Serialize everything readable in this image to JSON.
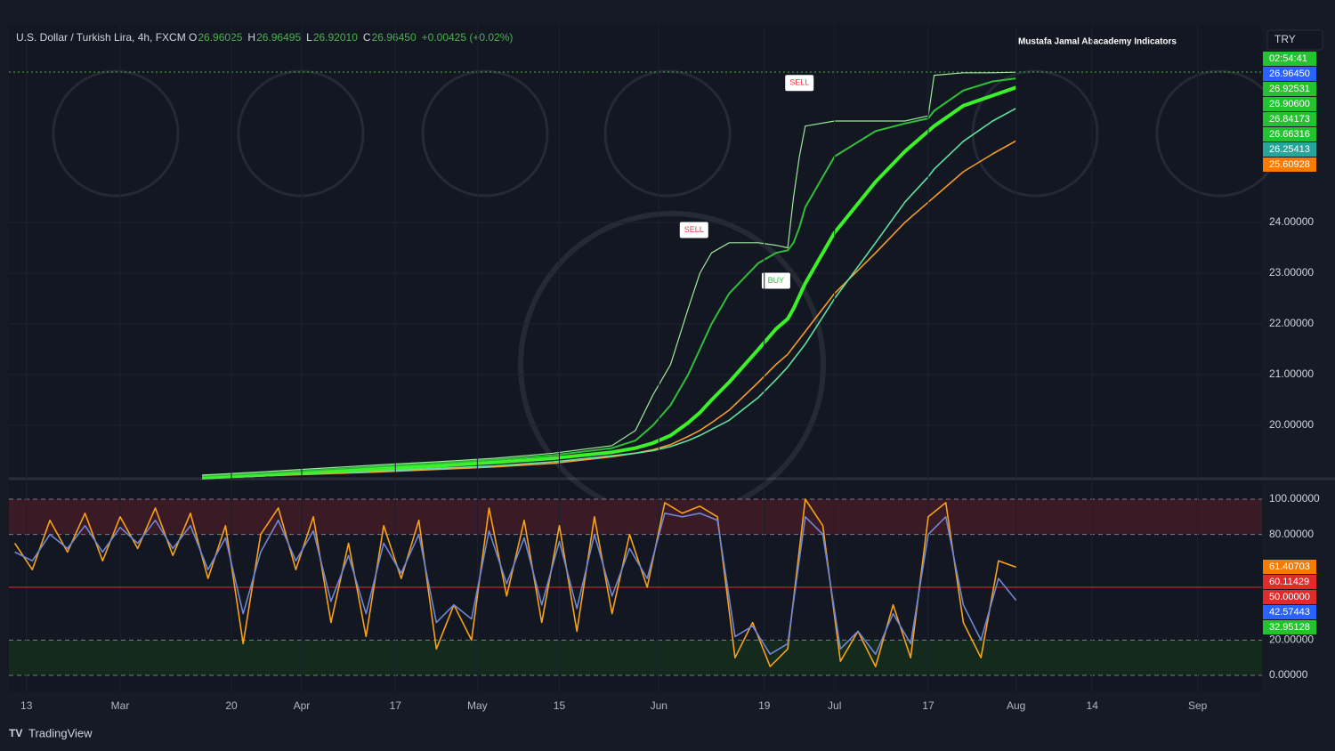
{
  "header": {
    "symbol": "U.S. Dollar / Turkish Lira, 4h, FXCM",
    "ohlc": [
      {
        "label": "O",
        "value": "26.96025"
      },
      {
        "label": "H",
        "value": "26.96495"
      },
      {
        "label": "L",
        "value": "26.92010"
      },
      {
        "label": "C",
        "value": "26.96450"
      }
    ],
    "change": "+0.00425 (+0.02%)"
  },
  "indicator_name": "Mustafa Jamal Abacademy Indicators",
  "currency": "TRY",
  "brand": "TradingView",
  "chart_data": [
    {
      "type": "line",
      "x": [
        30,
        40,
        50,
        60,
        70,
        80,
        90,
        100,
        104,
        107,
        110,
        113,
        115,
        117,
        120,
        125,
        128,
        130,
        131,
        132,
        133,
        138,
        145,
        150,
        154,
        155,
        160,
        165,
        169
      ],
      "xlim": [
        -3,
        211
      ],
      "ylim": [
        19.0,
        27.42
      ],
      "yticks": [
        {
          "value": 20,
          "label": "20.00000"
        },
        {
          "value": 21,
          "label": "21.00000"
        },
        {
          "value": 22,
          "label": "22.00000"
        },
        {
          "value": 23,
          "label": "23.00000"
        },
        {
          "value": 24,
          "label": "24.00000"
        }
      ],
      "series": [
        {
          "color": "#f59b2b",
          "width": 1.6,
          "values": [
            18.95,
            19.0,
            19.04,
            19.08,
            19.13,
            19.18,
            19.25,
            19.38,
            19.45,
            19.52,
            19.62,
            19.78,
            19.9,
            20.05,
            20.3,
            20.85,
            21.2,
            21.4,
            21.55,
            21.7,
            21.85,
            22.6,
            23.4,
            24.0,
            24.4,
            24.5,
            25.0,
            25.35,
            25.61
          ]
        },
        {
          "color": "#5fe3a1",
          "width": 1.6,
          "values": [
            18.95,
            19.0,
            19.05,
            19.1,
            19.15,
            19.2,
            19.28,
            19.4,
            19.45,
            19.5,
            19.58,
            19.7,
            19.8,
            19.92,
            20.1,
            20.55,
            20.9,
            21.15,
            21.3,
            21.45,
            21.6,
            22.5,
            23.6,
            24.4,
            24.9,
            25.05,
            25.6,
            26.0,
            26.25
          ]
        },
        {
          "color": "#3cf02a",
          "width": 4,
          "values": [
            18.98,
            19.02,
            19.08,
            19.14,
            19.2,
            19.27,
            19.35,
            19.47,
            19.55,
            19.65,
            19.8,
            20.05,
            20.25,
            20.5,
            20.85,
            21.5,
            21.9,
            22.1,
            22.3,
            22.55,
            22.8,
            23.8,
            24.8,
            25.4,
            25.8,
            25.9,
            26.3,
            26.5,
            26.66
          ]
        },
        {
          "color": "#2fbf3a",
          "width": 2,
          "values": [
            19.0,
            19.05,
            19.12,
            19.19,
            19.25,
            19.32,
            19.41,
            19.55,
            19.7,
            20.0,
            20.4,
            21.0,
            21.5,
            22.0,
            22.6,
            23.2,
            23.4,
            23.45,
            23.6,
            23.9,
            24.3,
            25.3,
            25.8,
            25.95,
            26.05,
            26.2,
            26.6,
            26.78,
            26.84
          ]
        },
        {
          "color": "#9be89b",
          "width": 1.2,
          "values": [
            19.02,
            19.08,
            19.15,
            19.22,
            19.28,
            19.35,
            19.45,
            19.6,
            19.9,
            20.6,
            21.2,
            22.3,
            23.0,
            23.4,
            23.6,
            23.6,
            23.55,
            23.5,
            24.5,
            25.3,
            25.9,
            26.0,
            26.0,
            26.0,
            26.1,
            26.9,
            26.95,
            26.95,
            26.96
          ]
        }
      ],
      "hlines": [
        {
          "value": 26.9645,
          "color": "#4caf50"
        }
      ],
      "annotations": [
        {
          "text": "SELL",
          "x": 132,
          "y": 26.75,
          "color": "#f23645"
        },
        {
          "text": "SELL",
          "x": 114,
          "y": 23.85,
          "color": "#f23645"
        },
        {
          "text": "BUY",
          "x": 128,
          "y": 22.85,
          "color": "#2fbf3a"
        }
      ],
      "badges": [
        {
          "label": "02:54:41",
          "color": "#22c32e"
        },
        {
          "label": "26.96450",
          "color": "#2962ff"
        },
        {
          "label": "26.92531",
          "color": "#22c32e"
        },
        {
          "label": "26.90600",
          "color": "#22c32e"
        },
        {
          "label": "26.84173",
          "color": "#22c32e"
        },
        {
          "label": "26.66316",
          "color": "#22c32e"
        },
        {
          "label": "26.25413",
          "color": "#26a69a"
        },
        {
          "label": "25.60928",
          "color": "#f57c00"
        }
      ]
    },
    {
      "type": "line",
      "x": [
        -2,
        1,
        4,
        7,
        10,
        13,
        16,
        19,
        22,
        25,
        28,
        31,
        34,
        37,
        40,
        43,
        46,
        49,
        52,
        55,
        58,
        61,
        64,
        67,
        70,
        73,
        76,
        79,
        82,
        85,
        88,
        91,
        94,
        97,
        100,
        103,
        106,
        109,
        112,
        115,
        118,
        121,
        124,
        127,
        130,
        133,
        136,
        139,
        142,
        145,
        148,
        151,
        154,
        157,
        160,
        163,
        166,
        169
      ],
      "xlim": [
        -3,
        211
      ],
      "ylim": [
        -9.6,
        110.6
      ],
      "yticks": [
        {
          "value": 0,
          "label": "0.00000"
        },
        {
          "value": 20,
          "label": "20.00000"
        },
        {
          "value": 80,
          "label": "80.00000"
        },
        {
          "value": 100,
          "label": "100.00000"
        }
      ],
      "xticks": [
        {
          "value": 0,
          "label": "13"
        },
        {
          "value": 16,
          "label": "Mar"
        },
        {
          "value": 35,
          "label": "20"
        },
        {
          "value": 47,
          "label": "Apr"
        },
        {
          "value": 63,
          "label": "17"
        },
        {
          "value": 77,
          "label": "May"
        },
        {
          "value": 91,
          "label": "15"
        },
        {
          "value": 108,
          "label": "Jun"
        },
        {
          "value": 126,
          "label": "19"
        },
        {
          "value": 138,
          "label": "Jul"
        },
        {
          "value": 154,
          "label": "17"
        },
        {
          "value": 169,
          "label": "Aug"
        },
        {
          "value": 182,
          "label": "14"
        },
        {
          "value": 200,
          "label": "Sep"
        }
      ],
      "series": [
        {
          "color": "#f7a21b",
          "width": 1.6,
          "values": [
            75,
            60,
            88,
            70,
            92,
            65,
            90,
            72,
            95,
            68,
            92,
            55,
            85,
            18,
            80,
            95,
            60,
            90,
            30,
            75,
            22,
            85,
            55,
            88,
            15,
            40,
            20,
            95,
            45,
            88,
            30,
            85,
            25,
            90,
            35,
            80,
            50,
            98,
            92,
            96,
            90,
            10,
            30,
            5,
            15,
            100,
            85,
            8,
            25,
            5,
            40,
            10,
            90,
            98,
            30,
            10,
            65,
            61.4
          ]
        },
        {
          "color": "#6f86d6",
          "width": 1.6,
          "values": [
            70,
            65,
            80,
            72,
            85,
            70,
            84,
            75,
            88,
            72,
            85,
            60,
            78,
            35,
            70,
            88,
            65,
            82,
            42,
            68,
            35,
            75,
            58,
            80,
            30,
            40,
            32,
            82,
            52,
            78,
            40,
            76,
            38,
            80,
            45,
            72,
            55,
            92,
            90,
            92,
            88,
            22,
            28,
            12,
            18,
            90,
            80,
            15,
            25,
            12,
            35,
            18,
            80,
            90,
            40,
            20,
            55,
            42.57
          ]
        }
      ],
      "bands": [
        {
          "from": 80,
          "to": 100,
          "color": "#3a1a24"
        },
        {
          "from": 0,
          "to": 20,
          "color": "#142a1c"
        }
      ],
      "hlines": [
        {
          "value": 50,
          "color": "#e02b2b"
        }
      ],
      "badges": [
        {
          "label": "61.40703",
          "color": "#f57c00"
        },
        {
          "label": "60.11429",
          "color": "#e02b2b"
        },
        {
          "label": "50.00000",
          "color": "#e02b2b"
        },
        {
          "label": "42.57443",
          "color": "#2962ff"
        },
        {
          "label": "32.95128",
          "color": "#22c32e"
        }
      ]
    }
  ]
}
